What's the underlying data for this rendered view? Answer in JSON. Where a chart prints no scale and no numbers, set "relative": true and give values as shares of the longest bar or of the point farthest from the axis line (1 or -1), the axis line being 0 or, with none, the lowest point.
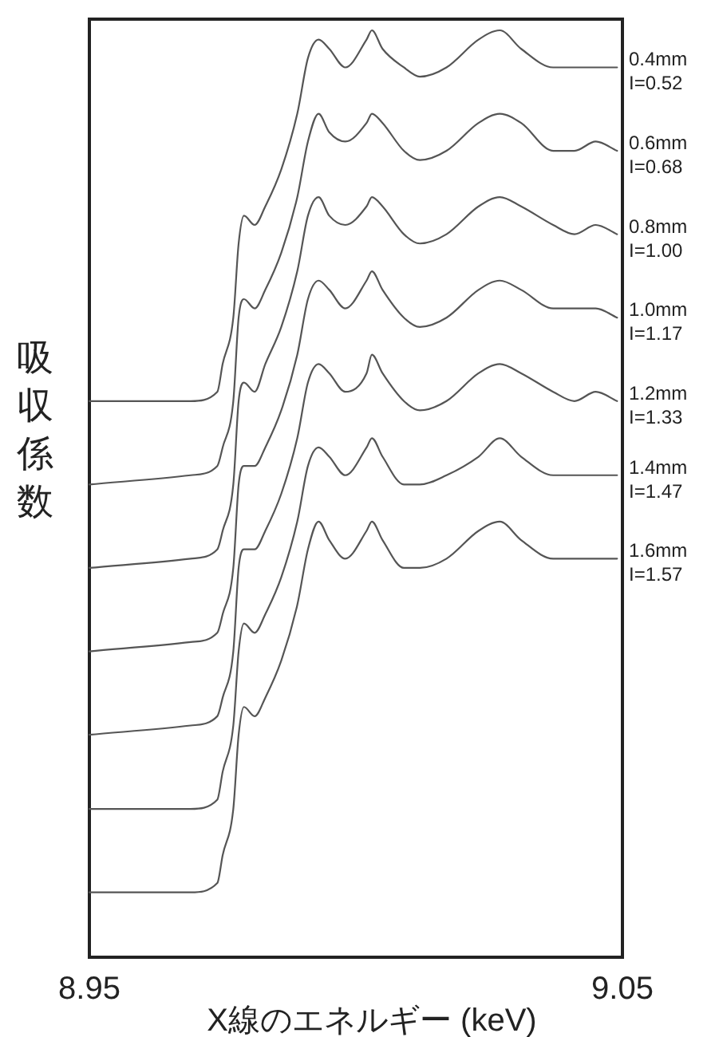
{
  "chart_data": {
    "type": "line",
    "relative": true,
    "xlabel": "X線のエネルギー (keV)",
    "ylabel": "吸収係数",
    "tick_labels": "x",
    "xlim": [
      8.95,
      9.05
    ],
    "xticks": [
      8.95,
      9.05
    ],
    "x": [
      8.95,
      8.969,
      8.974,
      8.975,
      8.977,
      8.978,
      8.979,
      8.981,
      8.983,
      8.986,
      8.989,
      8.991,
      8.993,
      8.995,
      8.998,
      9.002,
      9.003,
      9.005,
      9.009,
      9.012,
      9.017,
      9.023,
      9.027,
      9.031,
      9.037,
      9.041,
      9.045,
      9.049
    ],
    "series": [
      {
        "name": "0.4mm\nI=0.52",
        "color": "#555555",
        "values": [
          0.6,
          0.6,
          0.61,
          0.64,
          0.69,
          0.77,
          0.8,
          0.79,
          0.81,
          0.85,
          0.91,
          0.97,
          0.99,
          0.98,
          0.96,
          0.99,
          1.0,
          0.98,
          0.96,
          0.95,
          0.96,
          0.99,
          1.0,
          0.98,
          0.96,
          0.96,
          0.96,
          0.96
        ]
      },
      {
        "name": "0.6mm\nI=0.68",
        "color": "#555555",
        "values": [
          0.51,
          0.52,
          0.53,
          0.55,
          0.6,
          0.69,
          0.71,
          0.7,
          0.72,
          0.76,
          0.82,
          0.88,
          0.91,
          0.89,
          0.88,
          0.9,
          0.91,
          0.9,
          0.87,
          0.86,
          0.87,
          0.9,
          0.91,
          0.9,
          0.87,
          0.87,
          0.88,
          0.87
        ]
      },
      {
        "name": "0.8mm\nI=1.00",
        "color": "#555555",
        "values": [
          0.42,
          0.43,
          0.44,
          0.46,
          0.51,
          0.6,
          0.62,
          0.61,
          0.64,
          0.68,
          0.74,
          0.8,
          0.82,
          0.8,
          0.79,
          0.81,
          0.82,
          0.81,
          0.78,
          0.77,
          0.78,
          0.81,
          0.82,
          0.81,
          0.79,
          0.78,
          0.79,
          0.78
        ]
      },
      {
        "name": "1.0mm\nI=1.17",
        "color": "#555555",
        "values": [
          0.33,
          0.34,
          0.35,
          0.37,
          0.42,
          0.51,
          0.53,
          0.53,
          0.55,
          0.59,
          0.65,
          0.71,
          0.73,
          0.72,
          0.7,
          0.73,
          0.74,
          0.72,
          0.69,
          0.68,
          0.69,
          0.72,
          0.73,
          0.72,
          0.7,
          0.7,
          0.7,
          0.69
        ]
      },
      {
        "name": "1.2mm\nI=1.33",
        "color": "#555555",
        "values": [
          0.24,
          0.25,
          0.26,
          0.28,
          0.33,
          0.42,
          0.44,
          0.44,
          0.46,
          0.5,
          0.56,
          0.62,
          0.64,
          0.63,
          0.61,
          0.63,
          0.65,
          0.63,
          0.6,
          0.59,
          0.6,
          0.63,
          0.64,
          0.63,
          0.61,
          0.6,
          0.61,
          0.6
        ]
      },
      {
        "name": "1.4mm\nI=1.47",
        "color": "#555555",
        "values": [
          0.16,
          0.16,
          0.17,
          0.2,
          0.25,
          0.33,
          0.36,
          0.35,
          0.37,
          0.41,
          0.47,
          0.53,
          0.55,
          0.54,
          0.52,
          0.55,
          0.56,
          0.54,
          0.51,
          0.51,
          0.52,
          0.54,
          0.56,
          0.54,
          0.52,
          0.52,
          0.52,
          0.52
        ]
      },
      {
        "name": "1.6mm\nI=1.57",
        "color": "#555555",
        "values": [
          0.07,
          0.07,
          0.08,
          0.11,
          0.16,
          0.24,
          0.27,
          0.26,
          0.28,
          0.32,
          0.38,
          0.44,
          0.47,
          0.45,
          0.43,
          0.46,
          0.47,
          0.45,
          0.42,
          0.42,
          0.43,
          0.46,
          0.47,
          0.45,
          0.43,
          0.43,
          0.43,
          0.43
        ]
      }
    ]
  }
}
